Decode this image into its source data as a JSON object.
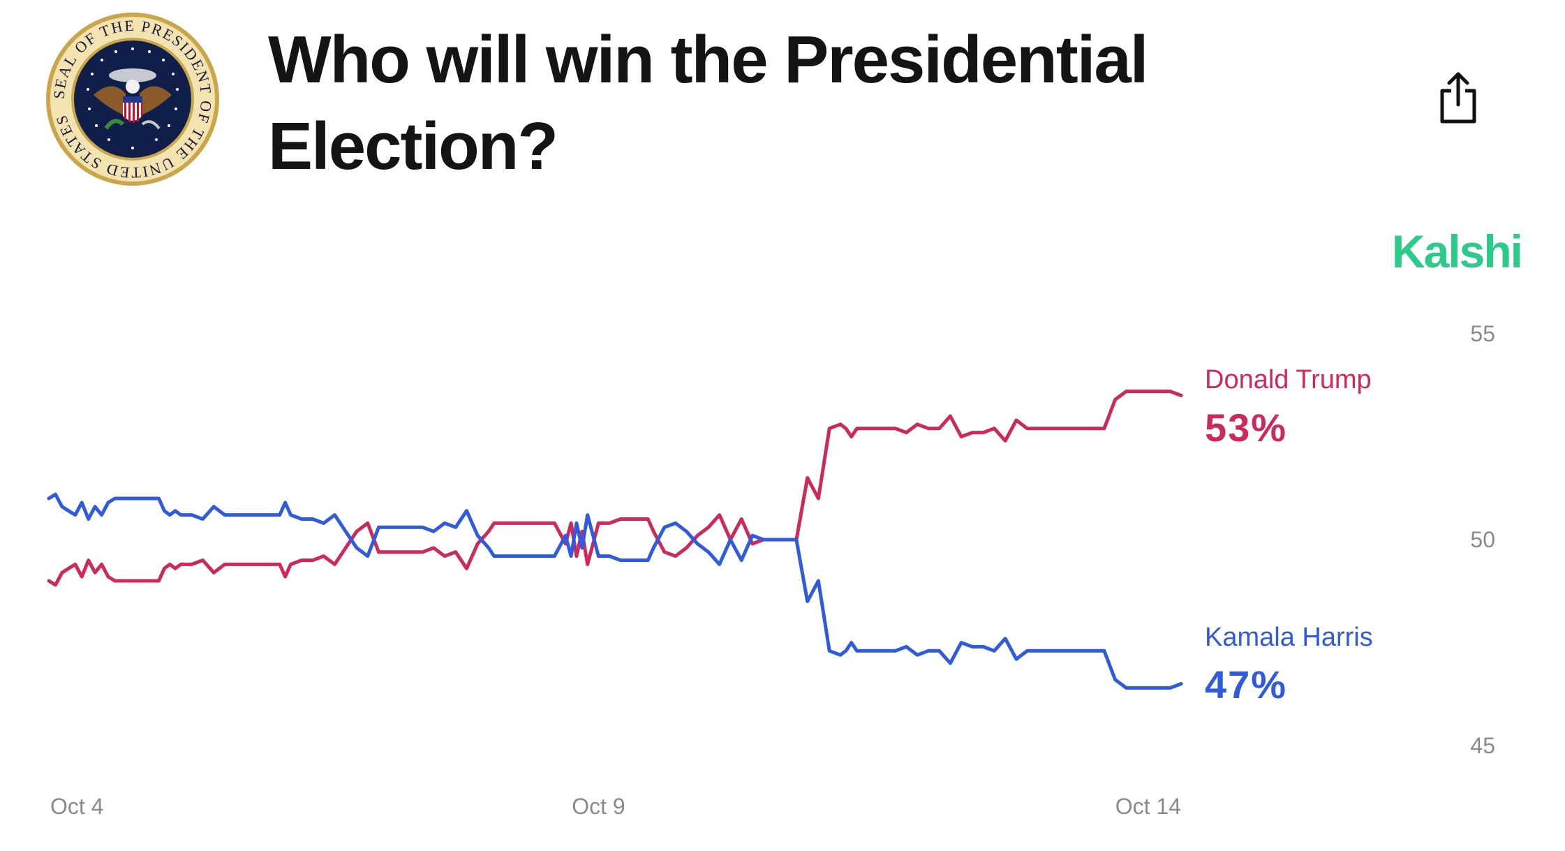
{
  "header": {
    "title": "Who will win the Presidential Election?",
    "seal": {
      "icon": "presidential-seal-icon",
      "lettering": "SEAL OF THE PRESIDENT OF THE UNITED STATES"
    },
    "share_icon": "share-icon",
    "brand": "Kalshi",
    "brand_color": "#2dcb8a"
  },
  "chart_data": {
    "type": "line",
    "title": "",
    "xlabel": "",
    "ylabel": "",
    "ylim": [
      45,
      55
    ],
    "y_ticks": [
      "55",
      "50",
      "45"
    ],
    "x_ticks": [
      "Oct 4",
      "Oct 9",
      "Oct 14"
    ],
    "x_tick_days": [
      4,
      9,
      14
    ],
    "xlim_days": [
      4,
      14.35
    ],
    "grid": false,
    "legend": "end-of-line labels",
    "series": [
      {
        "name": "Donald Trump",
        "value_label": "53%",
        "color": "#cc2a5d",
        "x": [
          4.0,
          4.06,
          4.12,
          4.18,
          4.24,
          4.3,
          4.36,
          4.42,
          4.48,
          4.54,
          4.6,
          4.7,
          4.8,
          4.9,
          5.0,
          5.05,
          5.1,
          5.15,
          5.2,
          5.3,
          5.4,
          5.5,
          5.6,
          5.7,
          5.8,
          5.9,
          6.0,
          6.1,
          6.15,
          6.2,
          6.3,
          6.4,
          6.5,
          6.6,
          6.7,
          6.8,
          6.9,
          7.0,
          7.1,
          7.2,
          7.3,
          7.4,
          7.5,
          7.6,
          7.7,
          7.8,
          7.9,
          8.0,
          8.05,
          8.1,
          8.15,
          8.2,
          8.3,
          8.4,
          8.5,
          8.6,
          8.7,
          8.75,
          8.8,
          8.85,
          8.9,
          9.0,
          9.1,
          9.2,
          9.3,
          9.35,
          9.4,
          9.45,
          9.5,
          9.6,
          9.7,
          9.8,
          9.9,
          10.0,
          10.1,
          10.2,
          10.3,
          10.4,
          10.5,
          10.6,
          10.7,
          10.8,
          10.9,
          11.0,
          11.1,
          11.2,
          11.25,
          11.3,
          11.35,
          11.4,
          11.45,
          11.5,
          11.6,
          11.7,
          11.8,
          11.9,
          12.0,
          12.1,
          12.2,
          12.3,
          12.4,
          12.5,
          12.6,
          12.7,
          12.8,
          12.9,
          13.0,
          13.1,
          13.2,
          13.3,
          13.4,
          13.5,
          13.6,
          13.7,
          13.8,
          13.9,
          14.0,
          14.1,
          14.2,
          14.3
        ],
        "y": [
          49.0,
          48.9,
          49.2,
          49.3,
          49.4,
          49.1,
          49.5,
          49.2,
          49.4,
          49.1,
          49.0,
          49.0,
          49.0,
          49.0,
          49.0,
          49.3,
          49.4,
          49.3,
          49.4,
          49.4,
          49.5,
          49.2,
          49.4,
          49.4,
          49.4,
          49.4,
          49.4,
          49.4,
          49.1,
          49.4,
          49.5,
          49.5,
          49.6,
          49.4,
          49.8,
          50.2,
          50.4,
          49.7,
          49.7,
          49.7,
          49.7,
          49.7,
          49.8,
          49.6,
          49.7,
          49.3,
          49.9,
          50.2,
          50.4,
          50.4,
          50.4,
          50.4,
          50.4,
          50.4,
          50.4,
          50.4,
          49.9,
          50.4,
          49.6,
          50.2,
          49.4,
          50.4,
          50.4,
          50.5,
          50.5,
          50.5,
          50.5,
          50.5,
          50.2,
          49.7,
          49.6,
          49.8,
          50.1,
          50.3,
          50.6,
          50.0,
          50.5,
          49.9,
          50.0,
          50.0,
          50.0,
          50.0,
          51.5,
          51.0,
          52.7,
          52.8,
          52.7,
          52.5,
          52.7,
          52.7,
          52.7,
          52.7,
          52.7,
          52.7,
          52.6,
          52.8,
          52.7,
          52.7,
          53.0,
          52.5,
          52.6,
          52.6,
          52.7,
          52.4,
          52.9,
          52.7,
          52.7,
          52.7,
          52.7,
          52.7,
          52.7,
          52.7,
          52.7,
          53.4,
          53.6,
          53.6,
          53.6,
          53.6,
          53.6,
          53.5
        ]
      },
      {
        "name": "Kamala Harris",
        "value_label": "47%",
        "color": "#2f5bdc",
        "x": [
          4.0,
          4.06,
          4.12,
          4.18,
          4.24,
          4.3,
          4.36,
          4.42,
          4.48,
          4.54,
          4.6,
          4.7,
          4.8,
          4.9,
          5.0,
          5.05,
          5.1,
          5.15,
          5.2,
          5.3,
          5.4,
          5.5,
          5.6,
          5.7,
          5.8,
          5.9,
          6.0,
          6.1,
          6.15,
          6.2,
          6.3,
          6.4,
          6.5,
          6.6,
          6.7,
          6.8,
          6.9,
          7.0,
          7.1,
          7.2,
          7.3,
          7.4,
          7.5,
          7.6,
          7.7,
          7.8,
          7.9,
          8.0,
          8.05,
          8.1,
          8.15,
          8.2,
          8.3,
          8.4,
          8.5,
          8.6,
          8.7,
          8.75,
          8.8,
          8.85,
          8.9,
          9.0,
          9.1,
          9.2,
          9.3,
          9.35,
          9.4,
          9.45,
          9.5,
          9.6,
          9.7,
          9.8,
          9.9,
          10.0,
          10.1,
          10.2,
          10.3,
          10.4,
          10.5,
          10.6,
          10.7,
          10.8,
          10.9,
          11.0,
          11.1,
          11.2,
          11.25,
          11.3,
          11.35,
          11.4,
          11.45,
          11.5,
          11.6,
          11.7,
          11.8,
          11.9,
          12.0,
          12.1,
          12.2,
          12.3,
          12.4,
          12.5,
          12.6,
          12.7,
          12.8,
          12.9,
          13.0,
          13.1,
          13.2,
          13.3,
          13.4,
          13.5,
          13.6,
          13.7,
          13.8,
          13.9,
          14.0,
          14.1,
          14.2,
          14.3
        ],
        "y": [
          51.0,
          51.1,
          50.8,
          50.7,
          50.6,
          50.9,
          50.5,
          50.8,
          50.6,
          50.9,
          51.0,
          51.0,
          51.0,
          51.0,
          51.0,
          50.7,
          50.6,
          50.7,
          50.6,
          50.6,
          50.5,
          50.8,
          50.6,
          50.6,
          50.6,
          50.6,
          50.6,
          50.6,
          50.9,
          50.6,
          50.5,
          50.5,
          50.4,
          50.6,
          50.2,
          49.8,
          49.6,
          50.3,
          50.3,
          50.3,
          50.3,
          50.3,
          50.2,
          50.4,
          50.3,
          50.7,
          50.1,
          49.8,
          49.6,
          49.6,
          49.6,
          49.6,
          49.6,
          49.6,
          49.6,
          49.6,
          50.1,
          49.6,
          50.4,
          49.8,
          50.6,
          49.6,
          49.6,
          49.5,
          49.5,
          49.5,
          49.5,
          49.5,
          49.8,
          50.3,
          50.4,
          50.2,
          49.9,
          49.7,
          49.4,
          50.0,
          49.5,
          50.1,
          50.0,
          50.0,
          50.0,
          50.0,
          48.5,
          49.0,
          47.3,
          47.2,
          47.3,
          47.5,
          47.3,
          47.3,
          47.3,
          47.3,
          47.3,
          47.3,
          47.4,
          47.2,
          47.3,
          47.3,
          47.0,
          47.5,
          47.4,
          47.4,
          47.3,
          47.6,
          47.1,
          47.3,
          47.3,
          47.3,
          47.3,
          47.3,
          47.3,
          47.3,
          47.3,
          46.6,
          46.4,
          46.4,
          46.4,
          46.4,
          46.4,
          46.5
        ]
      }
    ]
  }
}
